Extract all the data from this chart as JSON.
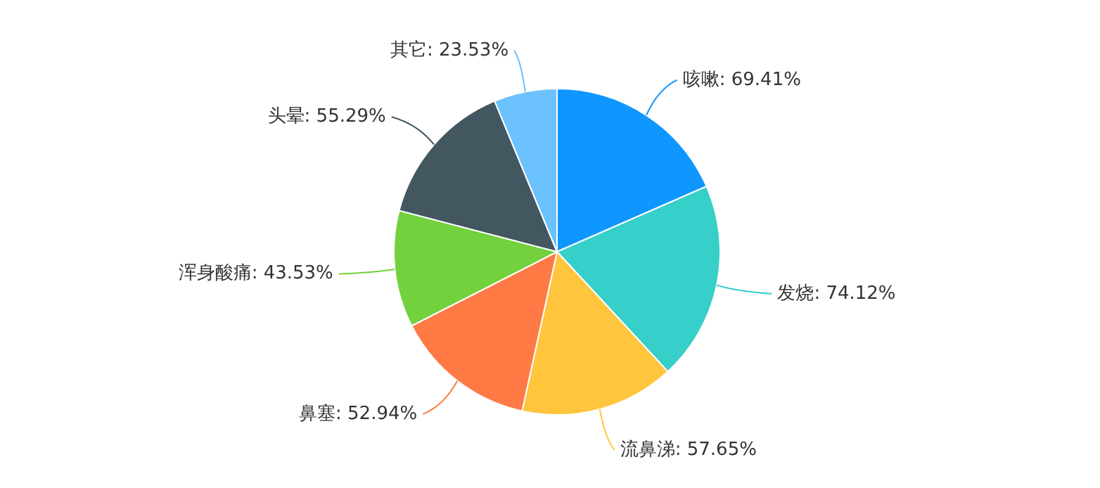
{
  "chart_data": {
    "type": "pie",
    "categories": [
      "咳嗽",
      "发烧",
      "流鼻涕",
      "鼻塞",
      "浑身酸痛",
      "头晕",
      "其它"
    ],
    "values": [
      69.41,
      74.12,
      57.65,
      52.94,
      43.53,
      55.29,
      23.53
    ],
    "value_labels": [
      "69.41%",
      "74.12%",
      "57.65%",
      "52.94%",
      "43.53%",
      "55.29%",
      "23.53%"
    ],
    "colors": [
      "#0f96ff",
      "#36cfc9",
      "#ffc53d",
      "#ff7a45",
      "#73d13d",
      "#435761",
      "#6cc1ff"
    ],
    "legend": false
  }
}
